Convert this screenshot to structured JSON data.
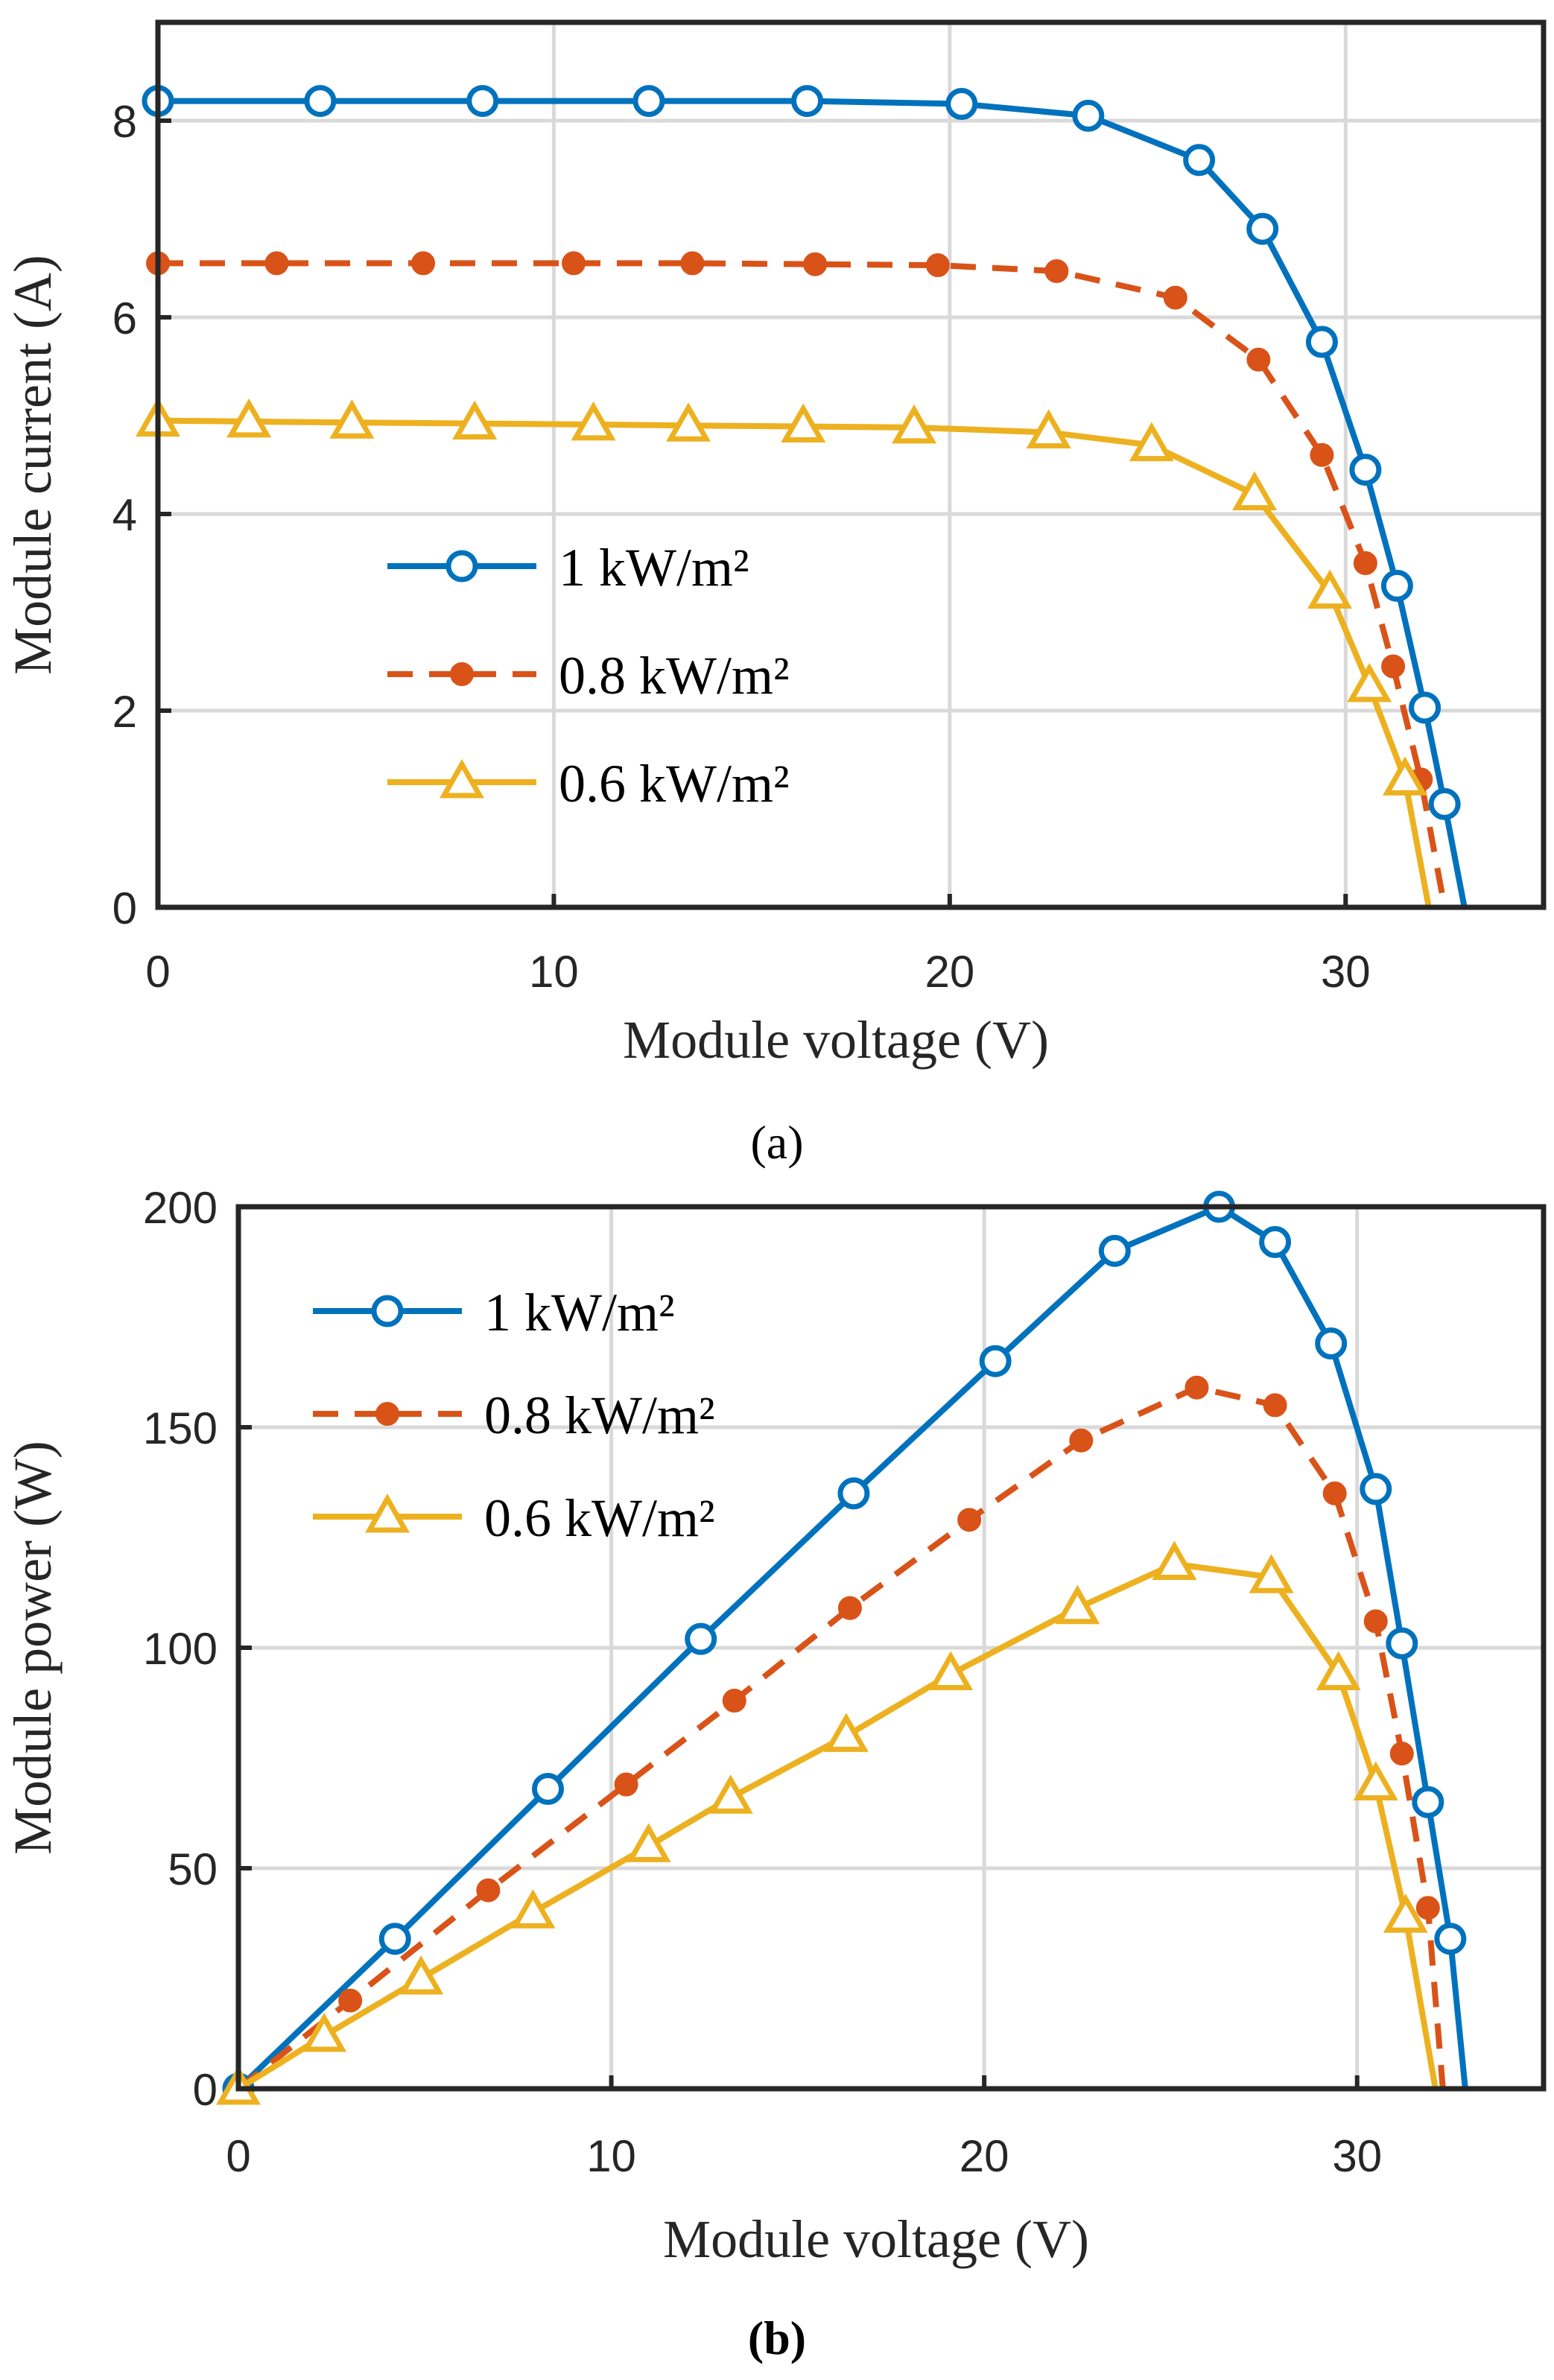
{
  "chart_data": [
    {
      "type": "line",
      "panel_label": "(a)",
      "xlabel": "Module voltage (V)",
      "ylabel": "Module current (A)",
      "xlim": [
        0,
        35
      ],
      "ylim": [
        0,
        9
      ],
      "xticks": [
        "0",
        "10",
        "20",
        "30"
      ],
      "yticks": [
        "0",
        "2",
        "4",
        "6",
        "8"
      ],
      "grid": true,
      "legend_position": "middle-left",
      "series": [
        {
          "name": "1 kW/m²",
          "color": "#0072BD",
          "line_style": "solid",
          "marker": "circle",
          "x": [
            0,
            4.1,
            8.2,
            12.4,
            16.4,
            20.3,
            23.5,
            26.3,
            27.9,
            29.4,
            30.5,
            31.3,
            32.0,
            32.5,
            33.0
          ],
          "y": [
            8.2,
            8.2,
            8.2,
            8.2,
            8.2,
            8.17,
            8.05,
            7.6,
            6.9,
            5.75,
            4.45,
            3.27,
            2.03,
            1.05,
            0
          ]
        },
        {
          "name": "0.8 kW/m²",
          "color": "#D95319",
          "line_style": "dashed",
          "marker": "filled-circle",
          "x": [
            0,
            3.0,
            6.7,
            10.5,
            13.5,
            16.6,
            19.7,
            22.7,
            25.7,
            27.8,
            29.4,
            30.5,
            31.2,
            31.9,
            32.5
          ],
          "y": [
            6.55,
            6.55,
            6.55,
            6.55,
            6.55,
            6.54,
            6.53,
            6.47,
            6.2,
            5.57,
            4.6,
            3.5,
            2.45,
            1.3,
            0
          ]
        },
        {
          "name": "0.6 kW/m²",
          "color": "#EDB120",
          "line_style": "solid",
          "marker": "triangle",
          "x": [
            0,
            2.3,
            4.9,
            8.0,
            11.0,
            13.4,
            16.3,
            19.1,
            22.5,
            25.1,
            27.7,
            29.6,
            30.6,
            31.5,
            32.1
          ],
          "y": [
            4.95,
            4.94,
            4.93,
            4.92,
            4.91,
            4.9,
            4.89,
            4.88,
            4.83,
            4.7,
            4.2,
            3.2,
            2.25,
            1.3,
            0
          ]
        }
      ]
    },
    {
      "type": "line",
      "panel_label": "(b)",
      "xlabel": "Module voltage (V)",
      "ylabel": "Module power (W)",
      "xlim": [
        0,
        35
      ],
      "ylim": [
        0,
        200
      ],
      "xticks": [
        "0",
        "10",
        "20",
        "30"
      ],
      "yticks": [
        "0",
        "50",
        "100",
        "150",
        "200"
      ],
      "grid": true,
      "legend_position": "top-left",
      "series": [
        {
          "name": "1 kW/m²",
          "color": "#0072BD",
          "line_style": "solid",
          "marker": "circle",
          "x": [
            0,
            4.2,
            8.3,
            12.4,
            16.5,
            20.3,
            23.5,
            26.3,
            27.8,
            29.3,
            30.5,
            31.2,
            31.9,
            32.5,
            32.9
          ],
          "y": [
            0,
            34,
            68,
            102,
            135,
            165,
            190,
            200,
            192,
            169,
            136,
            101,
            65,
            34,
            0
          ]
        },
        {
          "name": "0.8 kW/m²",
          "color": "#D95319",
          "line_style": "dashed",
          "marker": "filled-circle",
          "x": [
            0,
            3.0,
            6.7,
            10.4,
            13.3,
            16.4,
            19.6,
            22.6,
            25.7,
            27.8,
            29.4,
            30.5,
            31.2,
            31.9,
            32.3
          ],
          "y": [
            0,
            20,
            45,
            69,
            88,
            109,
            129,
            147,
            159,
            155,
            135,
            106,
            76,
            41,
            0
          ]
        },
        {
          "name": "0.6 kW/m²",
          "color": "#EDB120",
          "line_style": "solid",
          "marker": "triangle",
          "x": [
            0,
            2.3,
            4.9,
            7.9,
            11.0,
            13.2,
            16.3,
            19.1,
            22.5,
            25.1,
            27.7,
            29.5,
            30.5,
            31.3,
            32.1
          ],
          "y": [
            0,
            12,
            25,
            40,
            55,
            66,
            80,
            94,
            109,
            119,
            116,
            94,
            69,
            39,
            0
          ]
        }
      ]
    }
  ]
}
